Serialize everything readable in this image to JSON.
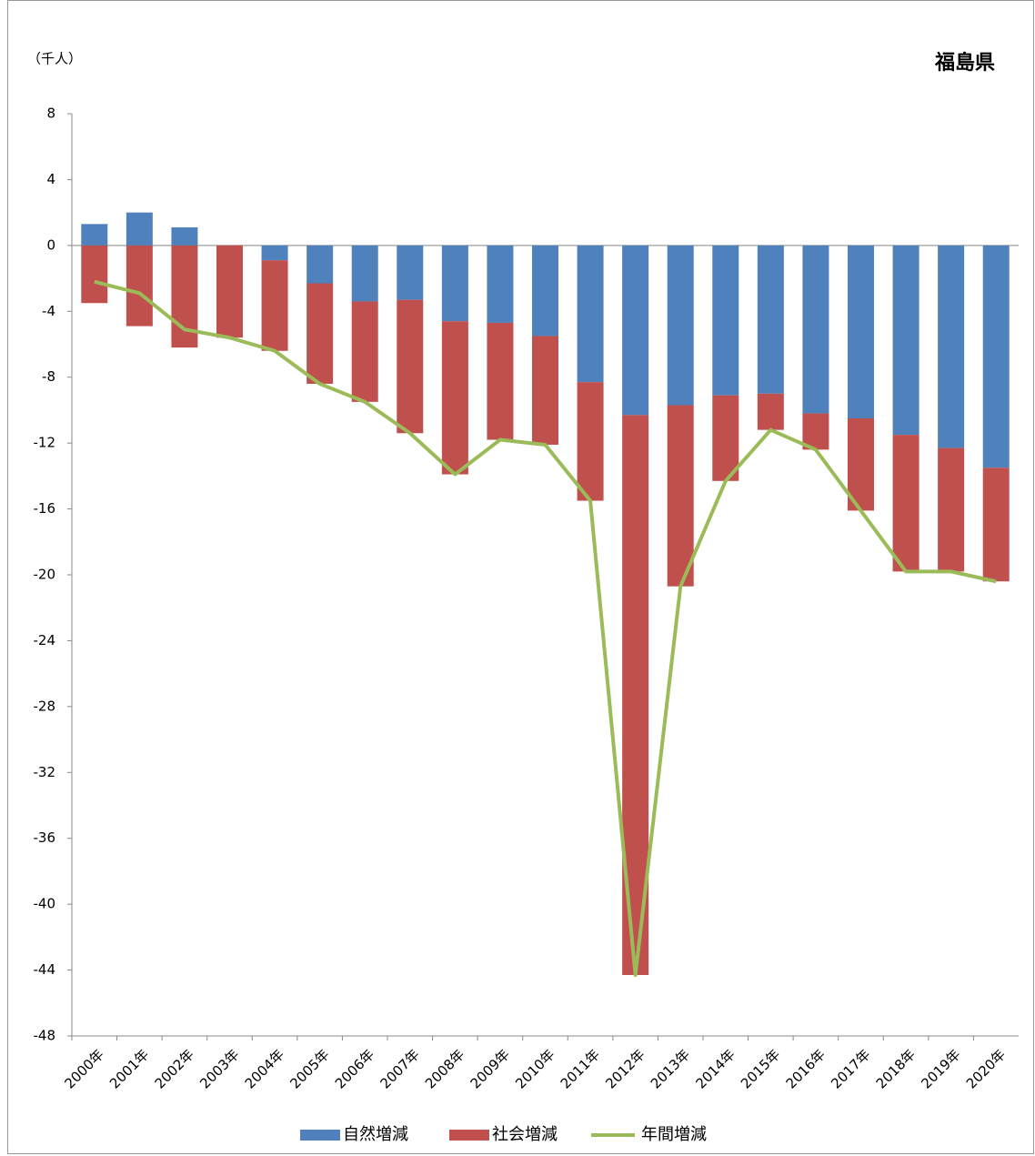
{
  "chart_data": {
    "type": "bar",
    "title": "福島県",
    "unit_label": "（千人）",
    "categories": [
      "2000年",
      "2001年",
      "2002年",
      "2003年",
      "2004年",
      "2005年",
      "2006年",
      "2007年",
      "2008年",
      "2009年",
      "2010年",
      "2011年",
      "2012年",
      "2013年",
      "2014年",
      "2015年",
      "2016年",
      "2017年",
      "2018年",
      "2019年",
      "2020年"
    ],
    "series": [
      {
        "name": "自然増減",
        "type": "bar",
        "color": "#4f81bd",
        "values": [
          1.3,
          2.0,
          1.1,
          0,
          -0.9,
          -2.3,
          -3.4,
          -3.3,
          -4.6,
          -4.7,
          -5.5,
          -8.3,
          -10.3,
          -9.7,
          -9.1,
          -9.0,
          -10.2,
          -10.5,
          -11.5,
          -12.3,
          -13.5
        ]
      },
      {
        "name": "社会増減",
        "type": "bar",
        "color": "#c0504d",
        "values": [
          -3.5,
          -4.9,
          -6.2,
          -5.6,
          -5.5,
          -6.1,
          -6.1,
          -8.1,
          -9.3,
          -7.1,
          -6.6,
          -7.2,
          -34.0,
          -11.0,
          -5.2,
          -2.2,
          -2.2,
          -5.6,
          -8.3,
          -7.5,
          -6.9
        ]
      },
      {
        "name": "年間増減",
        "type": "line",
        "color": "#9bbb59",
        "values": [
          -2.2,
          -2.9,
          -5.1,
          -5.6,
          -6.4,
          -8.4,
          -9.5,
          -11.4,
          -13.9,
          -11.8,
          -12.1,
          -15.5,
          -44.3,
          -20.7,
          -14.3,
          -11.2,
          -12.4,
          -16.1,
          -19.8,
          -19.8,
          -20.4
        ]
      }
    ],
    "stacked": true,
    "ylim": [
      -48,
      8
    ],
    "yticks": [
      8,
      4,
      0,
      -4,
      -8,
      -12,
      -16,
      -20,
      -24,
      -28,
      -32,
      -36,
      -40,
      -44,
      -48
    ],
    "grid": false,
    "legend": "bottom"
  }
}
